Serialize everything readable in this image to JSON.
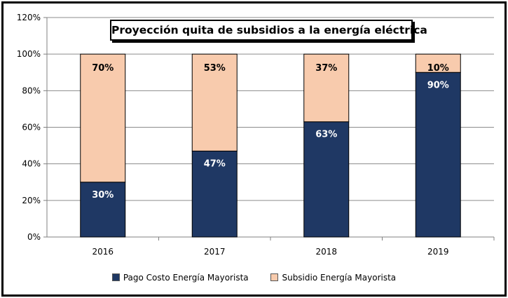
{
  "chart_data": {
    "type": "bar",
    "stacked": true,
    "title": "Proyección quita de subsidios a la energía eléctrica",
    "categories": [
      "2016",
      "2017",
      "2018",
      "2019"
    ],
    "series": [
      {
        "name": "Pago Costo Energía Mayorista",
        "values": [
          30,
          47,
          63,
          90
        ],
        "labels": [
          "30%",
          "47%",
          "63%",
          "90%"
        ],
        "color": "#1f3864"
      },
      {
        "name": "Subsidio Energía Mayorista",
        "values": [
          70,
          53,
          37,
          10
        ],
        "labels": [
          "70%",
          "53%",
          "37%",
          "10%"
        ],
        "color": "#f8cbad"
      }
    ],
    "ylim": [
      0,
      120
    ],
    "yticks": [
      0,
      20,
      40,
      60,
      80,
      100,
      120
    ],
    "ytick_labels": [
      "0%",
      "20%",
      "40%",
      "60%",
      "80%",
      "100%",
      "120%"
    ],
    "grid": true,
    "legend_position": "bottom",
    "xlabel": "",
    "ylabel": ""
  }
}
